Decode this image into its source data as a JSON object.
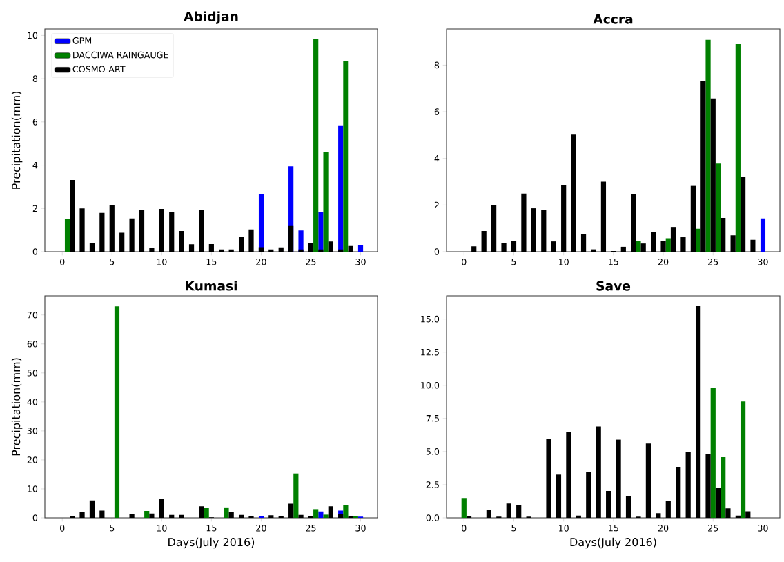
{
  "chart_data": [
    {
      "type": "bar",
      "title": "Abidjan",
      "ylabel": "Precipitation(mm)",
      "legend": "top left",
      "xlim": [
        -1.75,
        31.7
      ],
      "ylim": [
        0,
        10.3
      ],
      "xticks": [
        0,
        5,
        10,
        15,
        20,
        25,
        30
      ],
      "yticks": [
        0,
        2,
        4,
        6,
        8,
        10
      ],
      "series": [
        {
          "name": "GPM",
          "color": "#0000ff",
          "x": [
            20,
            23,
            24,
            26,
            28,
            30
          ],
          "values": [
            2.65,
            3.95,
            0.98,
            1.82,
            5.84,
            0.29
          ]
        },
        {
          "name": "DACCIWA RAINGAUGE",
          "color": "#008000",
          "x": [
            0.5,
            25.5,
            26.5,
            28.5
          ],
          "values": [
            1.5,
            9.84,
            4.62,
            8.83
          ]
        },
        {
          "name": "COSMO-ART",
          "color": "#000000",
          "x": [
            1,
            2,
            3,
            4,
            5,
            6,
            7,
            8,
            9,
            10,
            11,
            12,
            13,
            14,
            15,
            16,
            17,
            18,
            19,
            20,
            21,
            22,
            23,
            24,
            25,
            26,
            27,
            28,
            29
          ],
          "values": [
            3.32,
            2.0,
            0.39,
            1.79,
            2.14,
            0.88,
            1.54,
            1.93,
            0.16,
            1.98,
            1.84,
            0.96,
            0.34,
            1.94,
            0.35,
            0.1,
            0.1,
            0.67,
            1.03,
            0.21,
            0.1,
            0.2,
            1.19,
            0.1,
            0.41,
            0.1,
            0.47,
            0.1,
            0.26
          ]
        }
      ]
    },
    {
      "type": "bar",
      "title": "Accra",
      "xlim": [
        -1.75,
        31.7
      ],
      "ylim": [
        0,
        9.55
      ],
      "xticks": [
        0,
        5,
        10,
        15,
        20,
        25,
        30
      ],
      "yticks": [
        0,
        2,
        4,
        6,
        8
      ],
      "series": [
        {
          "color": "#0000ff",
          "x": [
            30
          ],
          "values": [
            1.43
          ]
        },
        {
          "color": "#008000",
          "x": [
            17.5,
            20.5,
            23.5,
            24.5,
            25.5,
            27.5
          ],
          "values": [
            0.47,
            0.58,
            0.98,
            9.09,
            3.78,
            8.9
          ]
        },
        {
          "color": "#000000",
          "x": [
            1,
            2,
            3,
            4,
            5,
            6,
            7,
            8,
            9,
            10,
            11,
            12,
            13,
            14,
            15,
            16,
            17,
            18,
            19,
            20,
            21,
            22,
            23,
            24,
            25,
            26,
            27,
            28,
            29
          ],
          "values": [
            0.23,
            0.89,
            2.0,
            0.38,
            0.44,
            2.49,
            1.86,
            1.8,
            0.44,
            2.85,
            5.02,
            0.74,
            0.1,
            3.0,
            0.03,
            0.21,
            2.46,
            0.35,
            0.83,
            0.45,
            1.06,
            0.62,
            2.82,
            7.31,
            6.57,
            1.45,
            0.7,
            3.2,
            0.51
          ]
        }
      ]
    },
    {
      "type": "bar",
      "title": "Kumasi",
      "xlabel": "Days(July 2016)",
      "ylabel": "Precipitation(mm)",
      "xlim": [
        -1.75,
        31.7
      ],
      "ylim": [
        0,
        76.6
      ],
      "xticks": [
        0,
        5,
        10,
        15,
        20,
        25,
        30
      ],
      "yticks": [
        0,
        10,
        20,
        30,
        40,
        50,
        60,
        70
      ],
      "series": [
        {
          "color": "#0000ff",
          "x": [
            20,
            26,
            28,
            30
          ],
          "values": [
            0.7,
            2.2,
            2.5,
            0.4
          ]
        },
        {
          "color": "#008000",
          "x": [
            5.5,
            8.5,
            14.5,
            16.5,
            23.5,
            25.5,
            26.5,
            28.5,
            29.5
          ],
          "values": [
            73.0,
            2.4,
            3.5,
            3.6,
            15.3,
            3.0,
            1.1,
            4.4,
            0.5
          ]
        },
        {
          "color": "#000000",
          "x": [
            1,
            2,
            3,
            4,
            7,
            9,
            10,
            11,
            12,
            14,
            15,
            17,
            18,
            19,
            21,
            22,
            23,
            24,
            25,
            27,
            28,
            29
          ],
          "values": [
            0.7,
            2.1,
            6.0,
            2.5,
            1.2,
            1.5,
            6.4,
            1.0,
            1.0,
            4.0,
            0.2,
            1.9,
            1.0,
            0.6,
            0.9,
            0.5,
            4.9,
            1.0,
            0.5,
            4.0,
            1.3,
            0.7
          ]
        }
      ]
    },
    {
      "type": "bar",
      "title": "Save",
      "xlabel": "Days(July 2016)",
      "xlim": [
        -1.75,
        31.7
      ],
      "ylim": [
        0,
        16.75
      ],
      "xticks": [
        0,
        5,
        10,
        15,
        20,
        25,
        30
      ],
      "yticks": [
        {
          "value": 0,
          "label": "0.0"
        },
        {
          "value": 2.5,
          "label": "2.5"
        },
        {
          "value": 5,
          "label": "5.0"
        },
        {
          "value": 7.5,
          "label": "7.5"
        },
        {
          "value": 10,
          "label": "10.0"
        },
        {
          "value": 12.5,
          "label": "12.5"
        },
        {
          "value": 15,
          "label": "15.0"
        }
      ],
      "series": [
        {
          "color": "#008000",
          "x": [
            0,
            25,
            26,
            28
          ],
          "values": [
            1.49,
            9.79,
            4.58,
            8.78
          ]
        },
        {
          "color": "#000000",
          "x": [
            0.5,
            2.5,
            3.5,
            4.5,
            5.5,
            6.5,
            8.5,
            9.5,
            10.5,
            11.5,
            12.5,
            13.5,
            14.5,
            15.5,
            16.5,
            17.5,
            18.5,
            19.5,
            20.5,
            21.5,
            22.5,
            23.5,
            24.5,
            25.5,
            26.5,
            27.5,
            28.5
          ],
          "values": [
            0.14,
            0.57,
            0.09,
            1.08,
            0.97,
            0.09,
            5.94,
            3.26,
            6.49,
            0.17,
            3.47,
            6.89,
            2.03,
            5.9,
            1.65,
            0.09,
            5.6,
            0.35,
            1.28,
            3.85,
            4.98,
            15.97,
            4.79,
            2.27,
            0.71,
            0.17,
            0.49
          ]
        }
      ]
    }
  ]
}
